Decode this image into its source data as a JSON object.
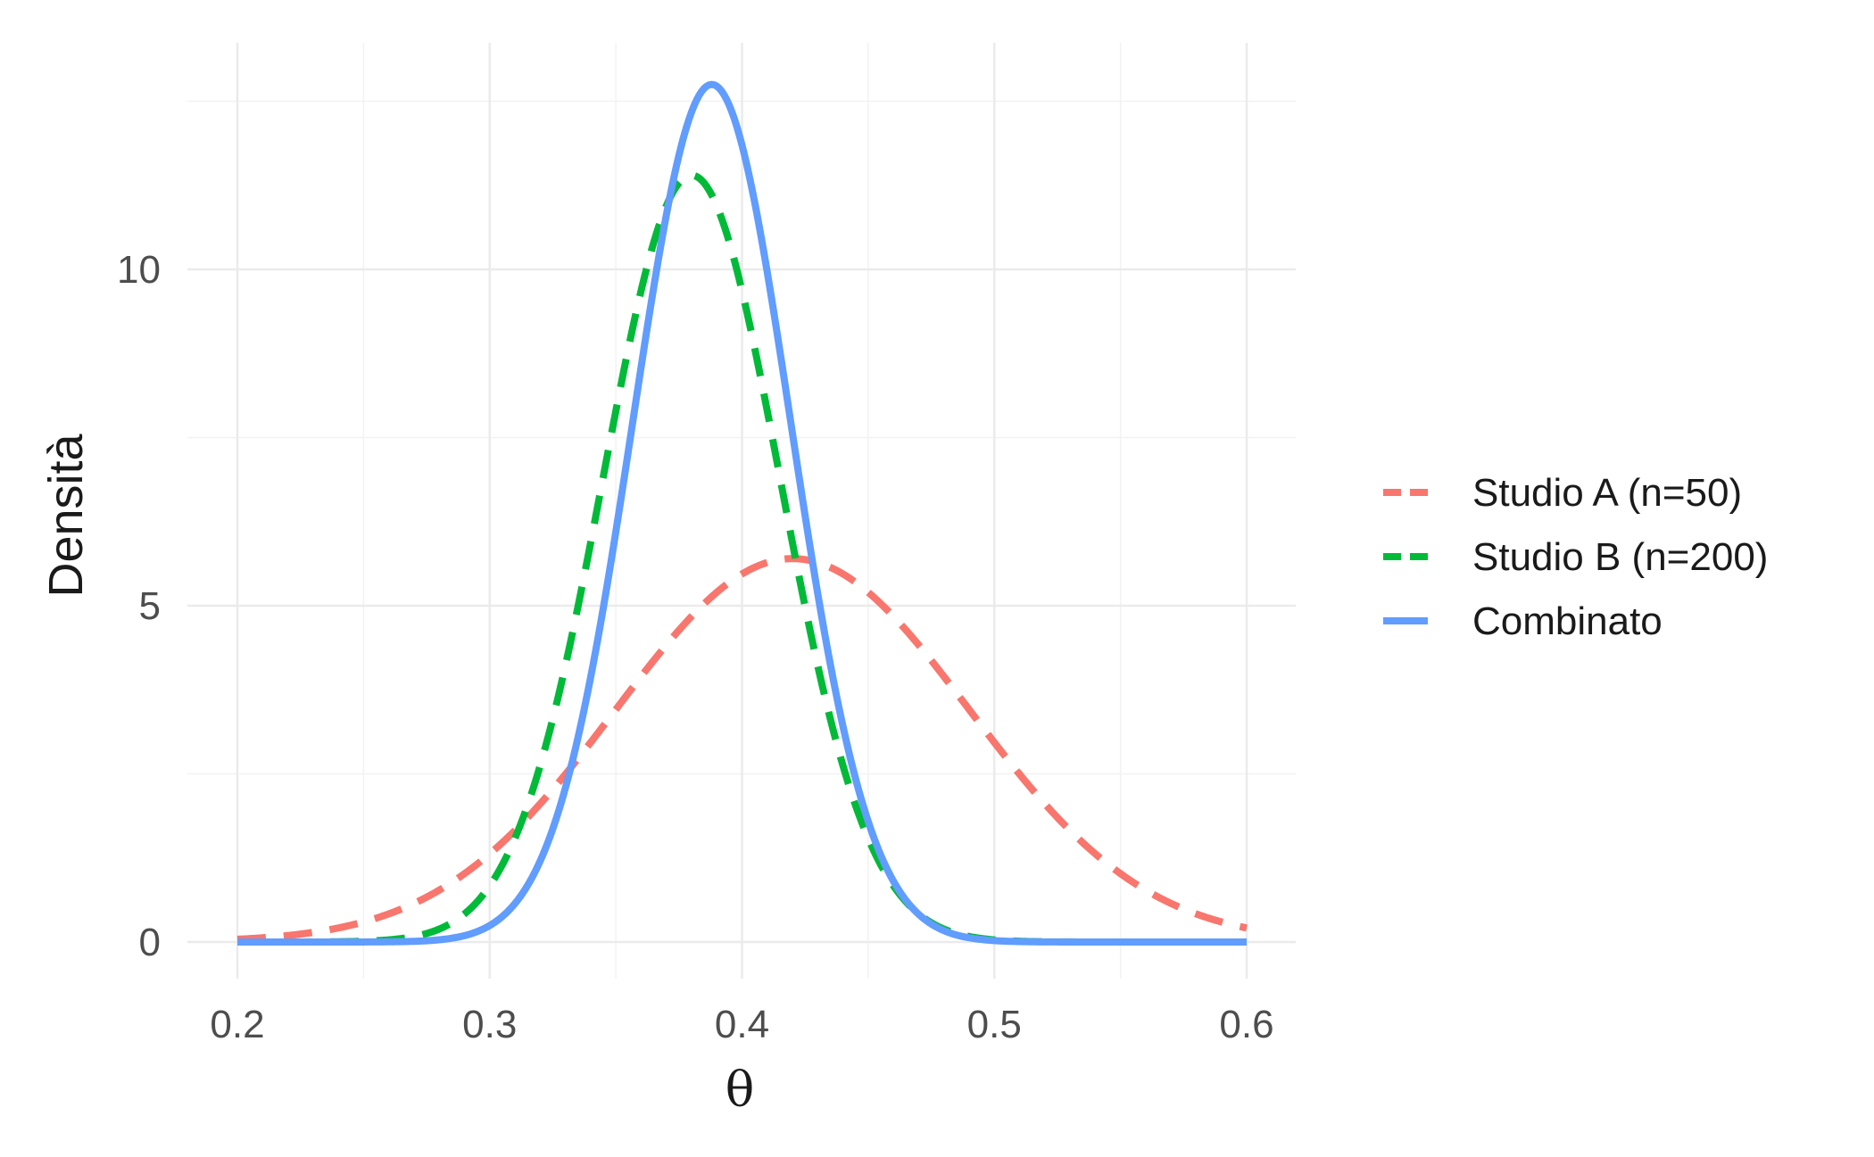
{
  "chart_data": {
    "type": "line",
    "xlabel": "θ",
    "ylabel": "Densità",
    "xlim": [
      0.2,
      0.6
    ],
    "ylim": [
      0,
      12.8
    ],
    "x_ticks": [
      "0.2",
      "0.3",
      "0.4",
      "0.5",
      "0.6"
    ],
    "y_ticks": [
      "0",
      "5",
      "10"
    ],
    "grid": true,
    "legend_position": "right",
    "series": [
      {
        "name": "Studio A (n=50)",
        "color": "#F8766D",
        "line_style": "dashed",
        "distribution": "normal",
        "mean": 0.42,
        "sd": 0.07,
        "peak_density": 5.7
      },
      {
        "name": "Studio B (n=200)",
        "color": "#00BA38",
        "line_style": "dashed",
        "distribution": "normal",
        "mean": 0.38,
        "sd": 0.035,
        "peak_density": 11.4
      },
      {
        "name": "Combinato",
        "color": "#619CFF",
        "line_style": "solid",
        "distribution": "normal",
        "mean": 0.388,
        "sd": 0.0313,
        "peak_density": 12.75
      }
    ]
  }
}
